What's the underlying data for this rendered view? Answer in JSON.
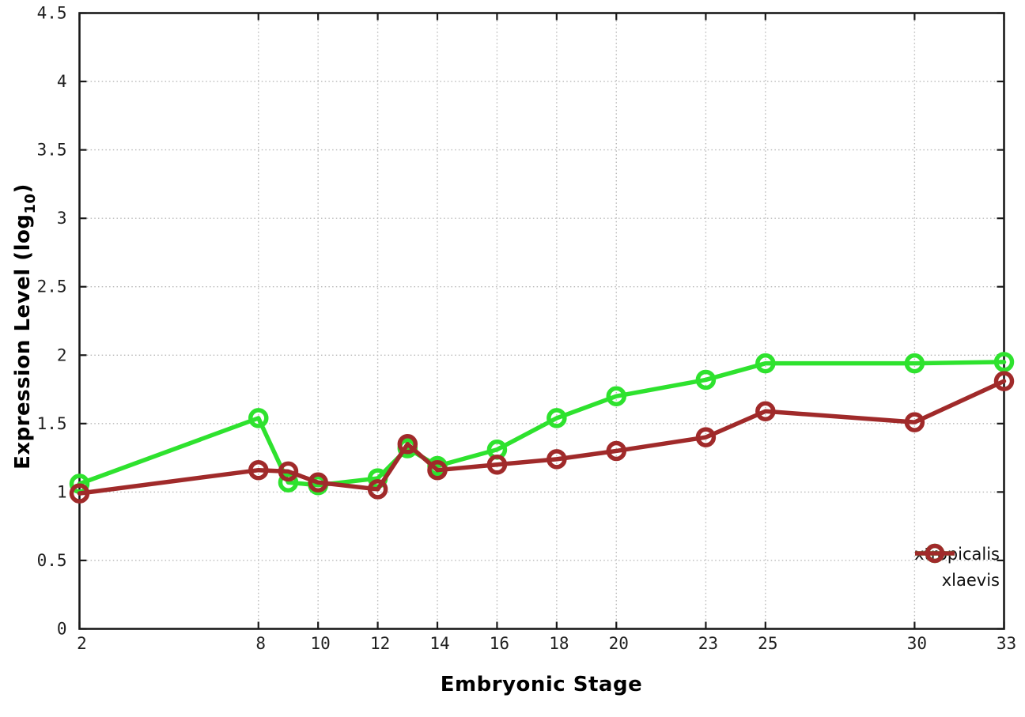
{
  "labels": {
    "ylabel_main": "Expression Level (log",
    "ylabel_sub": "10",
    "ylabel_close": ")"
  },
  "chart_data": {
    "type": "line",
    "title": "",
    "xlabel": "Embryonic Stage",
    "ylabel": "Expression Level (log10)",
    "xlim": [
      2,
      33
    ],
    "ylim": [
      0,
      4.5
    ],
    "x_ticks": [
      2,
      8,
      10,
      12,
      14,
      16,
      18,
      20,
      23,
      25,
      30,
      33
    ],
    "y_ticks": [
      0,
      0.5,
      1,
      1.5,
      2,
      2.5,
      3,
      3.5,
      4,
      4.5
    ],
    "grid": true,
    "legend_position": "bottom-right",
    "marker": "open-circle",
    "x": [
      2,
      8,
      9,
      10,
      12,
      13,
      14,
      16,
      18,
      20,
      23,
      25,
      30,
      33
    ],
    "series": [
      {
        "name": "xtropicalis",
        "color": "#2ee22e",
        "values": [
          1.06,
          1.54,
          1.07,
          1.05,
          1.1,
          1.32,
          1.19,
          1.31,
          1.54,
          1.7,
          1.82,
          1.94,
          1.94,
          1.95
        ]
      },
      {
        "name": "xlaevis",
        "color": "#a02a2a",
        "values": [
          0.99,
          1.16,
          1.15,
          1.07,
          1.02,
          1.35,
          1.16,
          1.2,
          1.24,
          1.3,
          1.4,
          1.59,
          1.51,
          1.81
        ]
      }
    ]
  },
  "style": {
    "background": "#ffffff",
    "grid_color": "#b9b9b9",
    "border_color": "#1a1a1a"
  }
}
